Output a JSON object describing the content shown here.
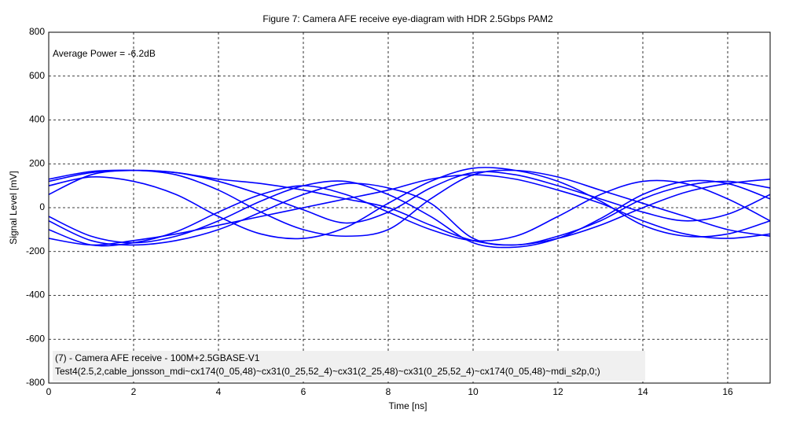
{
  "chart_data": {
    "type": "line",
    "title": "Figure 7: Camera AFE receive eye-diagram with HDR 2.5Gbps PAM2",
    "x_label": "Time [ns]",
    "y_label": "Signal Level [mV]",
    "annotation": "Average Power = -6.2dB",
    "note_lines": [
      "(7) - Camera AFE receive  -  100M+2.5GBASE-V1",
      "Test4(2.5,2,cable_jonsson_mdi~cx174(0_05,48)~cx31(0_25,52_4)~cx31(2_25,48)~cx31(0_25,52_4)~cx174(0_05,48)~mdi_s2p,0;)"
    ],
    "x": [
      0,
      1,
      2,
      3,
      4,
      5,
      6,
      7,
      8,
      9,
      10,
      11,
      12,
      13,
      14,
      15,
      16,
      17
    ],
    "series": [
      {
        "color": "#0000ff",
        "values": [
          130,
          165,
          170,
          160,
          120,
          60,
          -10,
          -70,
          -20,
          90,
          160,
          150,
          100,
          40,
          -20,
          -60,
          -30,
          60
        ]
      },
      {
        "color": "#0000ff",
        "values": [
          -60,
          -150,
          -170,
          -150,
          -100,
          -20,
          60,
          110,
          90,
          20,
          -140,
          -170,
          -130,
          -60,
          40,
          100,
          120,
          90
        ]
      },
      {
        "color": "#0000ff",
        "values": [
          120,
          160,
          170,
          150,
          80,
          -20,
          -100,
          -130,
          -100,
          40,
          150,
          170,
          140,
          80,
          20,
          -40,
          -100,
          -130
        ]
      },
      {
        "color": "#0000ff",
        "values": [
          -40,
          -130,
          -160,
          -130,
          -60,
          30,
          100,
          120,
          60,
          -40,
          -160,
          -180,
          -140,
          -50,
          60,
          120,
          110,
          40
        ]
      },
      {
        "color": "#0000ff",
        "values": [
          60,
          150,
          170,
          160,
          130,
          110,
          80,
          40,
          0,
          -80,
          -150,
          -170,
          -140,
          -80,
          0,
          70,
          110,
          130
        ]
      },
      {
        "color": "#0000ff",
        "values": [
          -100,
          -170,
          -160,
          -110,
          -20,
          60,
          100,
          60,
          -20,
          -100,
          -150,
          -130,
          -40,
          60,
          120,
          110,
          40,
          -60
        ]
      },
      {
        "color": "#0000ff",
        "values": [
          100,
          140,
          120,
          60,
          -40,
          -120,
          -140,
          -90,
          20,
          120,
          180,
          170,
          120,
          30,
          -80,
          -130,
          -120,
          -60
        ]
      },
      {
        "color": "#0000ff",
        "values": [
          -140,
          -170,
          -150,
          -120,
          -80,
          -40,
          0,
          40,
          80,
          130,
          150,
          130,
          80,
          20,
          -60,
          -120,
          -140,
          -120
        ]
      }
    ],
    "xlim": [
      0,
      17
    ],
    "xticks": [
      0,
      2,
      4,
      6,
      8,
      10,
      12,
      14,
      16
    ],
    "ylim": [
      -800,
      800
    ],
    "yticks": [
      -800,
      -600,
      -400,
      -200,
      0,
      200,
      400,
      600,
      800
    ],
    "grid": true
  }
}
